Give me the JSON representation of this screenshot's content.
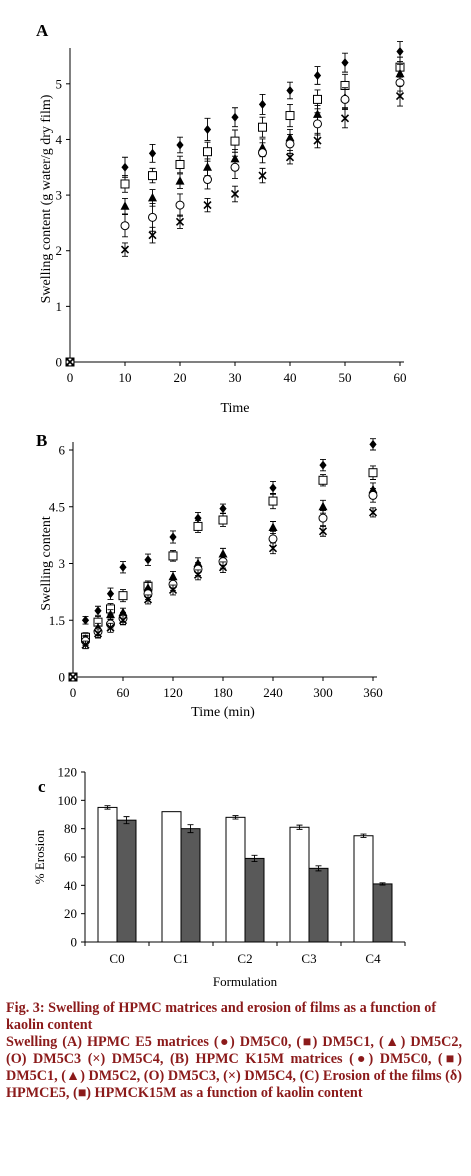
{
  "chart_data": [
    {
      "type": "scatter",
      "panel_label": "A",
      "ylabel": "Swelling content (g water/g dry film)",
      "xlabel": "Time",
      "xlim": [
        0,
        60
      ],
      "ylim": [
        0,
        5.5
      ],
      "xticks": [
        "0",
        "10",
        "20",
        "30",
        "40",
        "50",
        "60"
      ],
      "yticks": [
        "0",
        "1",
        "2",
        "3",
        "4",
        "5"
      ],
      "series": [
        {
          "marker": "diamond",
          "x": [
            0,
            10,
            15,
            20,
            25,
            30,
            35,
            40,
            45,
            50,
            60
          ],
          "y": [
            0,
            3.5,
            3.75,
            3.9,
            4.18,
            4.4,
            4.63,
            4.88,
            5.15,
            5.38,
            5.58
          ],
          "err": [
            0,
            0.18,
            0.16,
            0.14,
            0.2,
            0.17,
            0.18,
            0.15,
            0.16,
            0.17,
            0.18
          ]
        },
        {
          "marker": "square",
          "x": [
            0,
            10,
            15,
            20,
            25,
            30,
            35,
            40,
            45,
            50,
            60
          ],
          "y": [
            0,
            3.2,
            3.35,
            3.55,
            3.78,
            3.97,
            4.22,
            4.43,
            4.72,
            4.97,
            5.3
          ],
          "err": [
            0,
            0.15,
            0.13,
            0.15,
            0.17,
            0.2,
            0.18,
            0.2,
            0.17,
            0.2,
            0.18
          ]
        },
        {
          "marker": "triangle",
          "x": [
            0,
            10,
            15,
            20,
            25,
            30,
            35,
            40,
            45,
            50,
            60
          ],
          "y": [
            0,
            2.8,
            2.95,
            3.25,
            3.5,
            3.65,
            3.85,
            4.03,
            4.45,
            4.75,
            5.18
          ],
          "err": [
            0,
            0.14,
            0.15,
            0.13,
            0.15,
            0.17,
            0.16,
            0.15,
            0.16,
            0.18,
            0.17
          ]
        },
        {
          "marker": "circle",
          "x": [
            0,
            10,
            15,
            20,
            25,
            30,
            35,
            40,
            45,
            50,
            60
          ],
          "y": [
            0,
            2.45,
            2.6,
            2.82,
            3.28,
            3.5,
            3.76,
            3.92,
            4.28,
            4.72,
            5.02
          ],
          "err": [
            0,
            0.2,
            0.25,
            0.2,
            0.17,
            0.2,
            0.18,
            0.17,
            0.2,
            0.18,
            0.15
          ]
        },
        {
          "marker": "cross",
          "x": [
            0,
            10,
            15,
            20,
            25,
            30,
            35,
            40,
            45,
            50,
            60
          ],
          "y": [
            0,
            2.02,
            2.28,
            2.52,
            2.82,
            3.02,
            3.35,
            3.68,
            3.98,
            4.38,
            4.78
          ],
          "err": [
            0,
            0.12,
            0.14,
            0.12,
            0.12,
            0.14,
            0.13,
            0.12,
            0.13,
            0.17,
            0.18
          ]
        }
      ]
    },
    {
      "type": "scatter",
      "panel_label": "B",
      "ylabel": "Swelling content",
      "xlabel": "Time (min)",
      "xlim": [
        0,
        360
      ],
      "ylim": [
        0,
        6
      ],
      "xticks": [
        "0",
        "60",
        "120",
        "180",
        "240",
        "300",
        "360"
      ],
      "yticks": [
        "0",
        "1.5",
        "3",
        "4.5",
        "6"
      ],
      "series": [
        {
          "marker": "diamond",
          "x": [
            0,
            15,
            30,
            45,
            60,
            90,
            120,
            150,
            180,
            240,
            300,
            360
          ],
          "y": [
            0,
            1.5,
            1.75,
            2.2,
            2.9,
            3.1,
            3.7,
            4.2,
            4.45,
            5.0,
            5.6,
            6.15
          ],
          "err": [
            0,
            0.1,
            0.12,
            0.15,
            0.15,
            0.15,
            0.16,
            0.15,
            0.12,
            0.17,
            0.15,
            0.15
          ]
        },
        {
          "marker": "square",
          "x": [
            0,
            15,
            30,
            45,
            60,
            90,
            120,
            150,
            180,
            240,
            300,
            360
          ],
          "y": [
            0,
            1.05,
            1.45,
            1.8,
            2.15,
            2.4,
            3.2,
            3.98,
            4.15,
            4.65,
            5.2,
            5.4
          ],
          "err": [
            0,
            0.12,
            0.15,
            0.14,
            0.16,
            0.14,
            0.14,
            0.16,
            0.17,
            0.2,
            0.15,
            0.18
          ]
        },
        {
          "marker": "triangle",
          "x": [
            0,
            15,
            30,
            45,
            60,
            90,
            120,
            150,
            180,
            240,
            300,
            360
          ],
          "y": [
            0,
            1.0,
            1.3,
            1.65,
            1.7,
            2.35,
            2.65,
            3.0,
            3.25,
            3.95,
            4.5,
            4.95
          ],
          "err": [
            0,
            0.1,
            0.12,
            0.13,
            0.12,
            0.15,
            0.14,
            0.15,
            0.15,
            0.16,
            0.17,
            0.18
          ]
        },
        {
          "marker": "circle",
          "x": [
            0,
            15,
            30,
            45,
            60,
            90,
            120,
            150,
            180,
            240,
            300,
            360
          ],
          "y": [
            0,
            0.95,
            1.2,
            1.4,
            1.55,
            2.2,
            2.45,
            2.85,
            3.05,
            3.65,
            4.2,
            4.8
          ],
          "err": [
            0,
            0.12,
            0.15,
            0.13,
            0.16,
            0.15,
            0.16,
            0.17,
            0.17,
            0.2,
            0.2,
            0.18
          ]
        },
        {
          "marker": "cross",
          "x": [
            0,
            15,
            30,
            45,
            60,
            90,
            120,
            150,
            180,
            240,
            300,
            360
          ],
          "y": [
            0,
            0.85,
            1.15,
            1.3,
            1.5,
            2.05,
            2.3,
            2.7,
            2.9,
            3.4,
            3.85,
            4.35
          ],
          "err": [
            0,
            0.1,
            0.12,
            0.12,
            0.12,
            0.12,
            0.13,
            0.13,
            0.14,
            0.14,
            0.13,
            0.12
          ]
        }
      ]
    },
    {
      "type": "bar",
      "panel_label": "c",
      "ylabel": "% Erosion",
      "xlabel": "Formulation",
      "categories": [
        "C0",
        "C1",
        "C2",
        "C3",
        "C4"
      ],
      "ylim": [
        0,
        120
      ],
      "yticks": [
        "0",
        "20",
        "40",
        "60",
        "80",
        "100",
        "120"
      ],
      "series": [
        {
          "fill": "#ffffff",
          "values": [
            95,
            92,
            88,
            81,
            75
          ],
          "err": [
            1.2,
            0,
            1.2,
            1.5,
            1.2
          ]
        },
        {
          "fill": "#595959",
          "values": [
            86,
            80,
            59,
            52,
            41
          ],
          "err": [
            2.5,
            2.8,
            2.2,
            1.8,
            0.8
          ]
        }
      ]
    }
  ],
  "caption": {
    "title": "Fig. 3: Swelling of HPMC matrices and erosion of films as a function of kaolin content",
    "body": "Swelling (A) HPMC E5 matrices (●) DM5C0, (■) DM5C1, (▲) DM5C2, (O) DM5C3 (×) DM5C4, (B) HPMC K15M matrices (●) DM5C0, (■) DM5C1, (▲) DM5C2, (O) DM5C3, (×) DM5C4, (C) Erosion of the films (δ) HPMCE5, (■) HPMCK15M as a function of kaolin content"
  },
  "colors": {
    "ink": "#000000",
    "caption": "#8b1a1a",
    "bar_dark": "#595959"
  }
}
